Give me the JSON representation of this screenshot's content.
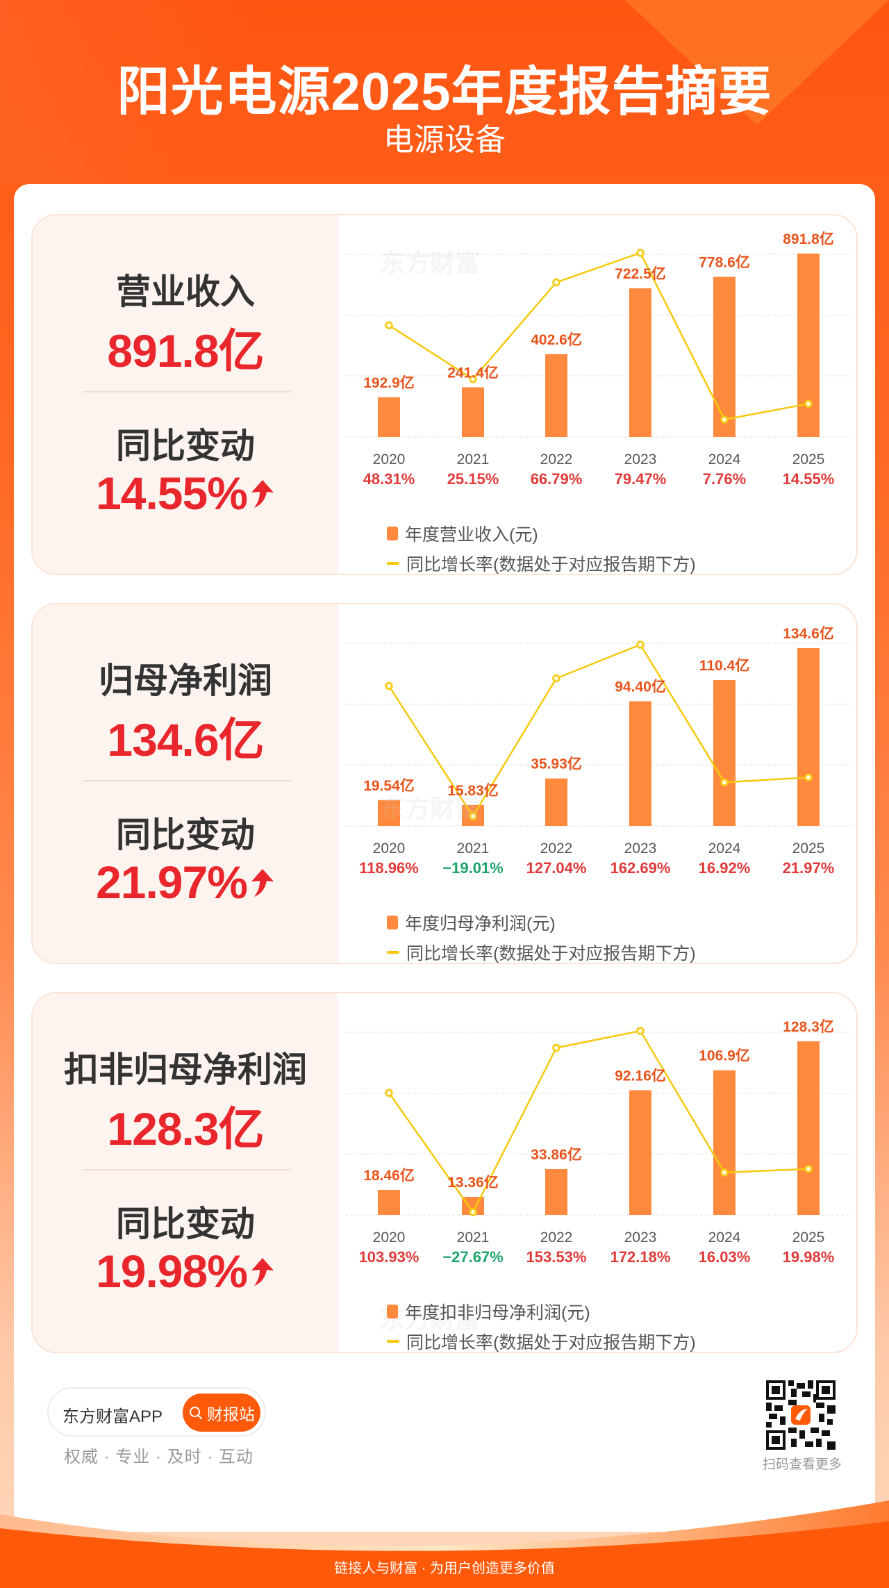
{
  "header": {
    "title": "阳光电源2025年度报告摘要",
    "subtitle": "电源设备"
  },
  "colors": {
    "brand_orange": "#ff5a0a",
    "bar": "#ff8a3d",
    "line": "#f6c90e",
    "value_label": "#e8541c",
    "positive": "#e03a3a",
    "negative": "#1fa36b",
    "metric_red": "#e8262b"
  },
  "watermark": "东方财富",
  "sections": [
    {
      "metric_title": "营业收入",
      "metric_value": "891.8亿",
      "change_title": "同比变动",
      "change_value": "14.55%",
      "change_direction": "up-arrow-icon",
      "legend_bar": "年度营业收入(元)",
      "legend_line": "同比增长率(数据处于对应报告期下方)"
    },
    {
      "metric_title": "归母净利润",
      "metric_value": "134.6亿",
      "change_title": "同比变动",
      "change_value": "21.97%",
      "change_direction": "up-arrow-icon",
      "legend_bar": "年度归母净利润(元)",
      "legend_line": "同比增长率(数据处于对应报告期下方)"
    },
    {
      "metric_title": "扣非归母净利润",
      "metric_value": "128.3亿",
      "change_title": "同比变动",
      "change_value": "19.98%",
      "change_direction": "up-arrow-icon",
      "legend_bar": "年度扣非归母净利润(元)",
      "legend_line": "同比增长率(数据处于对应报告期下方)"
    }
  ],
  "chart_data": [
    {
      "type": "bar",
      "title": "营业收入",
      "categories": [
        "2020",
        "2021",
        "2022",
        "2023",
        "2024",
        "2025"
      ],
      "series": [
        {
          "name": "年度营业收入(元)",
          "type": "bar",
          "values": [
            192.9,
            241.4,
            402.6,
            722.5,
            778.6,
            891.8
          ],
          "labels": [
            "192.9亿",
            "241.4亿",
            "402.6亿",
            "722.5亿",
            "778.6亿",
            "891.8亿"
          ],
          "unit": "亿"
        },
        {
          "name": "同比增长率(数据处于对应报告期下方)",
          "type": "line",
          "values": [
            48.31,
            25.15,
            66.79,
            79.47,
            7.76,
            14.55
          ],
          "labels": [
            "48.31%",
            "25.15%",
            "66.79%",
            "79.47%",
            "7.76%",
            "14.55%"
          ],
          "unit": "%"
        }
      ],
      "grid": true,
      "legend_position": "bottom-left",
      "xlabel": "",
      "ylabel": ""
    },
    {
      "type": "bar",
      "title": "归母净利润",
      "categories": [
        "2020",
        "2021",
        "2022",
        "2023",
        "2024",
        "2025"
      ],
      "series": [
        {
          "name": "年度归母净利润(元)",
          "type": "bar",
          "values": [
            19.54,
            15.83,
            35.93,
            94.4,
            110.4,
            134.6
          ],
          "labels": [
            "19.54亿",
            "15.83亿",
            "35.93亿",
            "94.40亿",
            "110.4亿",
            "134.6亿"
          ],
          "unit": "亿"
        },
        {
          "name": "同比增长率(数据处于对应报告期下方)",
          "type": "line",
          "values": [
            118.96,
            -19.01,
            127.04,
            162.69,
            16.92,
            21.97
          ],
          "labels": [
            "118.96%",
            "-19.01%",
            "127.04%",
            "162.69%",
            "16.92%",
            "21.97%"
          ],
          "unit": "%"
        }
      ],
      "grid": true,
      "legend_position": "bottom-left",
      "xlabel": "",
      "ylabel": ""
    },
    {
      "type": "bar",
      "title": "扣非归母净利润",
      "categories": [
        "2020",
        "2021",
        "2022",
        "2023",
        "2024",
        "2025"
      ],
      "series": [
        {
          "name": "年度扣非归母净利润(元)",
          "type": "bar",
          "values": [
            18.46,
            13.36,
            33.86,
            92.16,
            106.9,
            128.3
          ],
          "labels": [
            "18.46亿",
            "13.36亿",
            "33.86亿",
            "92.16亿",
            "106.9亿",
            "128.3亿"
          ],
          "unit": "亿"
        },
        {
          "name": "同比增长率(数据处于对应报告期下方)",
          "type": "line",
          "values": [
            103.93,
            -27.67,
            153.53,
            172.18,
            16.03,
            19.98
          ],
          "labels": [
            "103.93%",
            "-27.67%",
            "153.53%",
            "172.18%",
            "16.03%",
            "19.98%"
          ],
          "unit": "%"
        }
      ],
      "grid": true,
      "legend_position": "bottom-left",
      "xlabel": "",
      "ylabel": ""
    }
  ],
  "footer": {
    "app_name": "东方财富APP",
    "search_button": "财报站",
    "search_icon": "search-icon",
    "slogan": "权威 · 专业 · 及时 · 互动",
    "qr_label": "扫码查看更多",
    "bottom_text": "链接人与财富 · 为用户创造更多价值"
  }
}
